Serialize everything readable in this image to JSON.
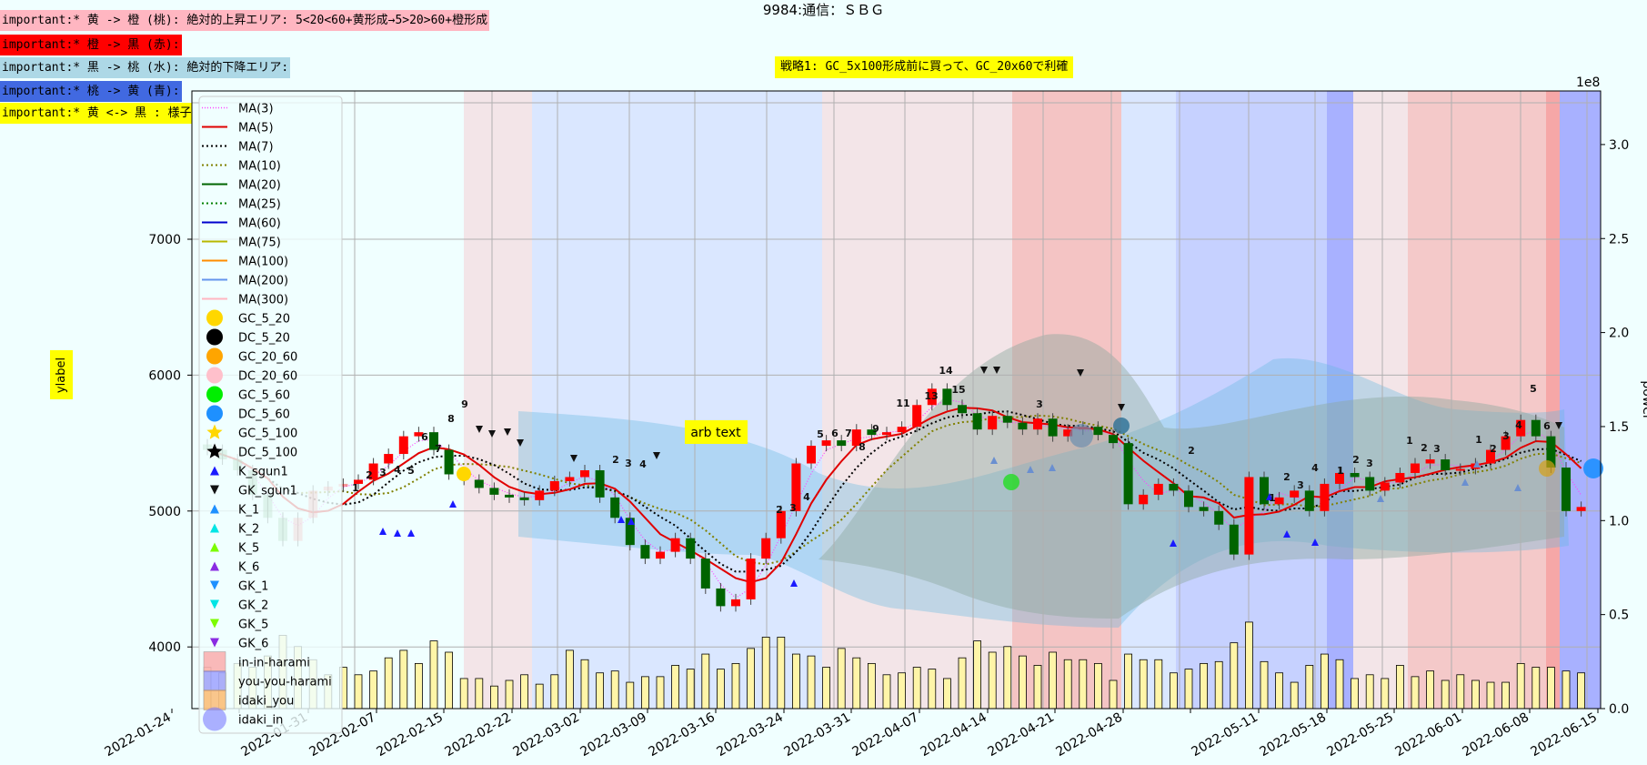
{
  "title": "9984:通信：ＳＢＧ",
  "notes": [
    {
      "text": "important:* 黄 -> 橙 (桃): 絶対的上昇エリア: 5<20<60+黄形成→5>20>60+橙形成",
      "bg": "#ffb6c1"
    },
    {
      "text": "important:* 橙 -> 黒 (赤):",
      "bg": "#ff0000"
    },
    {
      "text": "important:* 黒 -> 桃 (水): 絶対的下降エリア:",
      "bg": "#add8e6"
    },
    {
      "text": "important:* 桃 -> 黄 (青):",
      "bg": "#4169e1"
    },
    {
      "text": "important:* 黄 <-> 黒 : 様子見:",
      "bg": "#ffff00"
    }
  ],
  "strategy_label": "戦略1: GC_5x100形成前に買って、GC_20x60で利確",
  "ylabel": "ylabel",
  "chart_data": {
    "type": "candlestick",
    "y_left_ticks": [
      4000,
      5000,
      6000,
      7000
    ],
    "y_right_label": "power",
    "y_right_ticks": [
      "0.0",
      "0.5",
      "1.0",
      "1.5",
      "2.0",
      "2.5",
      "3.0"
    ],
    "y_right_multiplier": "1e8",
    "x_ticks": [
      "2022-01-24",
      "2022-01-31",
      "2022-02-07",
      "2022-02-15",
      "2022-02-22",
      "2022-03-02",
      "2022-03-09",
      "2022-03-16",
      "2022-03-24",
      "2022-03-31",
      "2022-04-07",
      "2022-04-14",
      "2022-04-21",
      "2022-04-28",
      "2022-05-11",
      "2022-05-18",
      "2022-05-25",
      "2022-06-01",
      "2022-06-08",
      "2022-06-15"
    ],
    "annotation": "arb text",
    "legend": [
      "MA(3)",
      "MA(5)",
      "MA(7)",
      "MA(10)",
      "MA(20)",
      "MA(25)",
      "MA(60)",
      "MA(75)",
      "MA(100)",
      "MA(200)",
      "MA(300)",
      "GC_5_20",
      "DC_5_20",
      "GC_20_60",
      "DC_20_60",
      "GC_5_60",
      "DC_5_60",
      "GC_5_100",
      "DC_5_100",
      "K_sgun1",
      "GK_sgun1",
      "K_1",
      "K_2",
      "K_5",
      "K_6",
      "GK_1",
      "GK_2",
      "GK_5",
      "GK_6",
      "in-in-harami",
      "you-you-harami",
      "idaki_you",
      "idaki_in"
    ],
    "close": [
      5450,
      5380,
      5300,
      5120,
      4950,
      4780,
      4950,
      5150,
      5180,
      5200,
      5230,
      5350,
      5420,
      5550,
      5580,
      5450,
      5270,
      5230,
      5170,
      5120,
      5100,
      5080,
      5150,
      5220,
      5250,
      5300,
      5100,
      4950,
      4750,
      4650,
      4700,
      4800,
      4650,
      4430,
      4300,
      4350,
      4650,
      4800,
      5000,
      5350,
      5480,
      5520,
      5480,
      5600,
      5560,
      5580,
      5620,
      5780,
      5900,
      5780,
      5720,
      5600,
      5700,
      5650,
      5600,
      5680,
      5550,
      5600,
      5620,
      5560,
      5500,
      5050,
      5120,
      5200,
      5150,
      5030,
      5000,
      4900,
      4680,
      5250,
      5050,
      5100,
      5150,
      5000,
      5200,
      5280,
      5250,
      5150,
      5210,
      5280,
      5350,
      5380,
      5300,
      5310,
      5350,
      5450,
      5550,
      5670,
      5550,
      5320,
      5000,
      5030
    ],
    "volume": [
      0.22,
      0.19,
      0.24,
      0.22,
      0.28,
      0.39,
      0.33,
      0.26,
      0.18,
      0.22,
      0.18,
      0.2,
      0.27,
      0.31,
      0.24,
      0.36,
      0.3,
      0.16,
      0.16,
      0.12,
      0.15,
      0.18,
      0.13,
      0.18,
      0.31,
      0.26,
      0.19,
      0.2,
      0.14,
      0.17,
      0.17,
      0.23,
      0.21,
      0.29,
      0.21,
      0.24,
      0.32,
      0.38,
      0.38,
      0.29,
      0.28,
      0.22,
      0.32,
      0.27,
      0.24,
      0.18,
      0.19,
      0.22,
      0.21,
      0.16,
      0.27,
      0.36,
      0.3,
      0.33,
      0.28,
      0.23,
      0.3,
      0.26,
      0.26,
      0.24,
      0.15,
      0.29,
      0.26,
      0.26,
      0.19,
      0.21,
      0.24,
      0.25,
      0.35,
      0.46,
      0.25,
      0.19,
      0.14,
      0.23,
      0.29,
      0.26,
      0.16,
      0.18,
      0.16,
      0.23,
      0.17,
      0.2,
      0.15,
      0.18,
      0.15,
      0.14,
      0.14,
      0.24,
      0.22,
      0.22,
      0.2,
      0.19
    ]
  }
}
